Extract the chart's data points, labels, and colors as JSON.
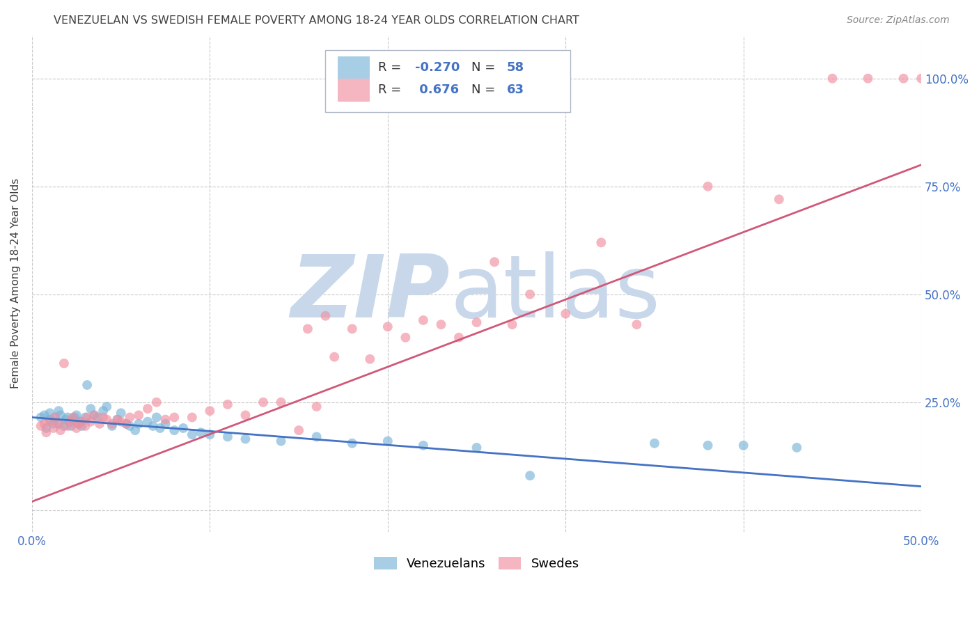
{
  "title": "VENEZUELAN VS SWEDISH FEMALE POVERTY AMONG 18-24 YEAR OLDS CORRELATION CHART",
  "source": "Source: ZipAtlas.com",
  "ylabel": "Female Poverty Among 18-24 Year Olds",
  "xlim": [
    0.0,
    0.5
  ],
  "ylim": [
    -0.05,
    1.1
  ],
  "yticks": [
    0.0,
    0.25,
    0.5,
    0.75,
    1.0
  ],
  "xtick_positions": [
    0.0,
    0.1,
    0.2,
    0.3,
    0.4,
    0.5
  ],
  "xtick_labels": [
    "0.0%",
    "",
    "",
    "",
    "",
    "50.0%"
  ],
  "ytick_labels_right": [
    "",
    "25.0%",
    "50.0%",
    "75.0%",
    "100.0%"
  ],
  "venezuelan_color": "#7ab4d8",
  "swedish_color": "#f090a0",
  "venezuelan_line_color": "#4472c4",
  "swedish_line_color": "#d05878",
  "watermark_zip": "ZIP",
  "watermark_atlas": "atlas",
  "watermark_color": "#c8d8ea",
  "background_color": "#ffffff",
  "grid_color": "#c8c8c8",
  "title_color": "#404040",
  "axis_label_color": "#404040",
  "tick_label_color": "#4472c4",
  "R_ven": -0.27,
  "N_ven": 58,
  "R_swe": 0.676,
  "N_swe": 63,
  "ven_line_x0": 0.0,
  "ven_line_y0": 0.215,
  "ven_line_x1": 0.5,
  "ven_line_y1": 0.055,
  "swe_line_x0": 0.0,
  "swe_line_y0": 0.02,
  "swe_line_x1": 0.5,
  "swe_line_y1": 0.8,
  "venezuelan_x": [
    0.005,
    0.007,
    0.008,
    0.01,
    0.01,
    0.012,
    0.013,
    0.015,
    0.015,
    0.016,
    0.018,
    0.019,
    0.02,
    0.021,
    0.022,
    0.023,
    0.024,
    0.025,
    0.026,
    0.027,
    0.028,
    0.03,
    0.031,
    0.033,
    0.035,
    0.037,
    0.04,
    0.042,
    0.045,
    0.048,
    0.05,
    0.053,
    0.055,
    0.058,
    0.06,
    0.065,
    0.068,
    0.07,
    0.072,
    0.075,
    0.08,
    0.085,
    0.09,
    0.095,
    0.1,
    0.11,
    0.12,
    0.14,
    0.16,
    0.18,
    0.2,
    0.22,
    0.25,
    0.28,
    0.35,
    0.38,
    0.4,
    0.43
  ],
  "venezuelan_y": [
    0.215,
    0.22,
    0.19,
    0.225,
    0.21,
    0.2,
    0.215,
    0.23,
    0.2,
    0.22,
    0.195,
    0.21,
    0.215,
    0.205,
    0.195,
    0.21,
    0.215,
    0.22,
    0.2,
    0.205,
    0.195,
    0.215,
    0.29,
    0.235,
    0.22,
    0.215,
    0.23,
    0.24,
    0.195,
    0.21,
    0.225,
    0.2,
    0.195,
    0.185,
    0.2,
    0.205,
    0.195,
    0.215,
    0.19,
    0.2,
    0.185,
    0.19,
    0.175,
    0.18,
    0.175,
    0.17,
    0.165,
    0.16,
    0.17,
    0.155,
    0.16,
    0.15,
    0.145,
    0.08,
    0.155,
    0.15,
    0.15,
    0.145
  ],
  "swedish_x": [
    0.005,
    0.007,
    0.008,
    0.01,
    0.012,
    0.013,
    0.015,
    0.016,
    0.018,
    0.02,
    0.022,
    0.023,
    0.025,
    0.026,
    0.028,
    0.03,
    0.031,
    0.033,
    0.035,
    0.038,
    0.04,
    0.042,
    0.045,
    0.048,
    0.05,
    0.053,
    0.055,
    0.06,
    0.065,
    0.07,
    0.075,
    0.08,
    0.09,
    0.1,
    0.11,
    0.12,
    0.13,
    0.14,
    0.15,
    0.155,
    0.16,
    0.165,
    0.17,
    0.18,
    0.19,
    0.2,
    0.21,
    0.22,
    0.23,
    0.24,
    0.25,
    0.26,
    0.27,
    0.28,
    0.3,
    0.32,
    0.34,
    0.38,
    0.42,
    0.45,
    0.47,
    0.49,
    0.5
  ],
  "swedish_y": [
    0.195,
    0.2,
    0.18,
    0.205,
    0.19,
    0.215,
    0.2,
    0.185,
    0.34,
    0.195,
    0.205,
    0.215,
    0.19,
    0.2,
    0.205,
    0.195,
    0.215,
    0.205,
    0.22,
    0.2,
    0.215,
    0.21,
    0.2,
    0.21,
    0.205,
    0.2,
    0.215,
    0.22,
    0.235,
    0.25,
    0.21,
    0.215,
    0.215,
    0.23,
    0.245,
    0.22,
    0.25,
    0.25,
    0.185,
    0.42,
    0.24,
    0.45,
    0.355,
    0.42,
    0.35,
    0.425,
    0.4,
    0.44,
    0.43,
    0.4,
    0.435,
    0.575,
    0.43,
    0.5,
    0.455,
    0.62,
    0.43,
    0.75,
    0.72,
    1.0,
    1.0,
    1.0,
    1.0
  ]
}
